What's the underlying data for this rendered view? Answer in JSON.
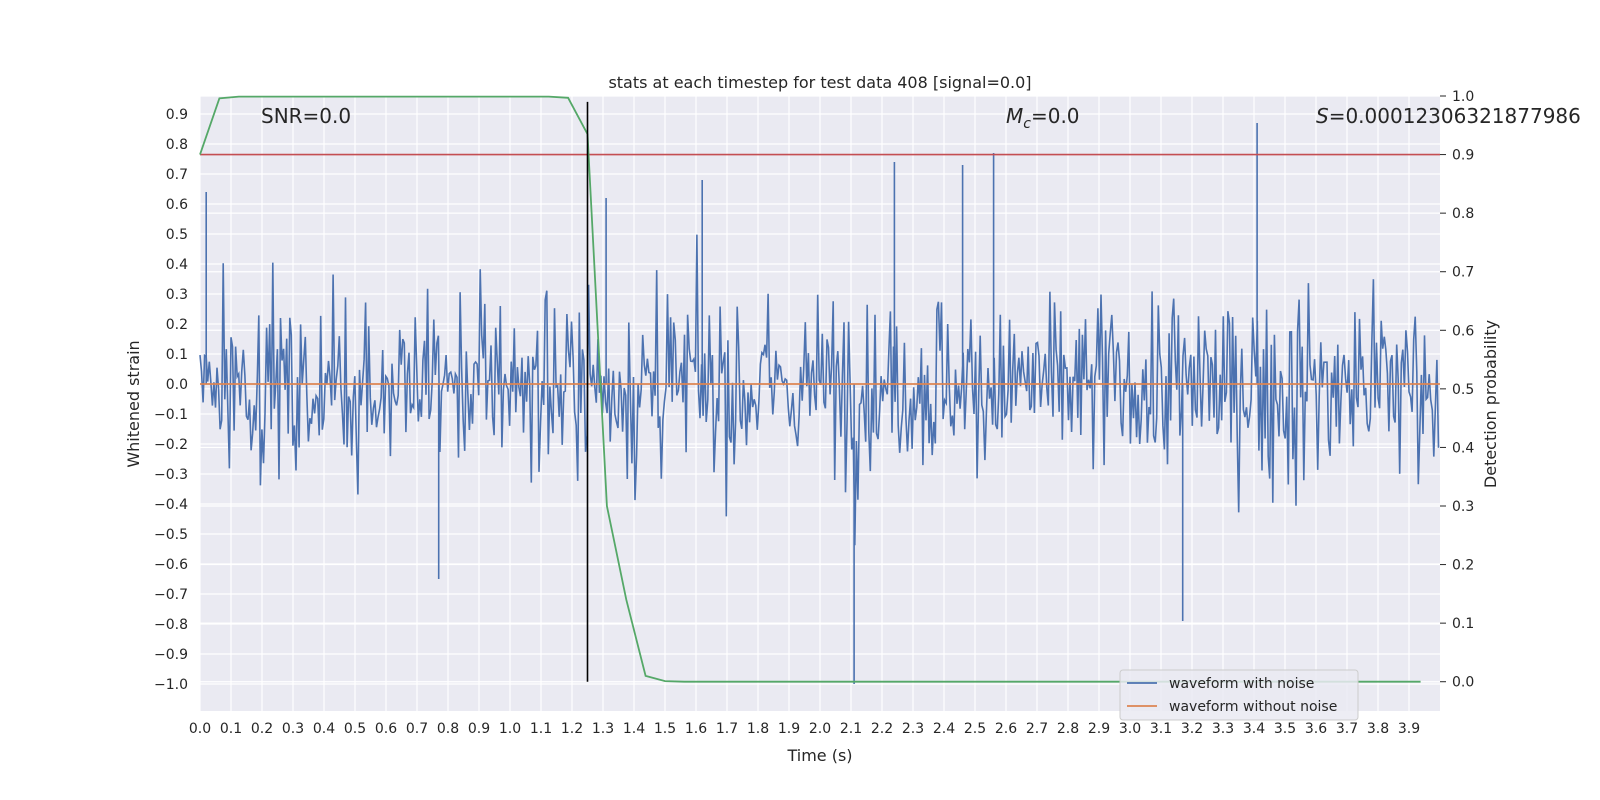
{
  "chart_data": {
    "type": "line",
    "title": "stats at each timestep for test data 408 [signal=0.0]",
    "xlabel": "Time (s)",
    "ylabel_left": "Whitened strain",
    "ylabel_right": "Detection probability",
    "xlim": [
      0.0,
      4.0
    ],
    "ylim_left": [
      -1.09,
      0.96
    ],
    "ylim_right": [
      -0.05,
      1.0
    ],
    "x_ticks": [
      "0.0",
      "0.1",
      "0.2",
      "0.3",
      "0.4",
      "0.5",
      "0.6",
      "0.7",
      "0.8",
      "0.9",
      "1.0",
      "1.1",
      "1.2",
      "1.3",
      "1.4",
      "1.5",
      "1.6",
      "1.7",
      "1.8",
      "1.9",
      "2.0",
      "2.1",
      "2.2",
      "2.3",
      "2.4",
      "2.5",
      "2.6",
      "2.7",
      "2.8",
      "2.9",
      "3.0",
      "3.1",
      "3.2",
      "3.3",
      "3.4",
      "3.5",
      "3.6",
      "3.7",
      "3.8",
      "3.9"
    ],
    "y_ticks_left": [
      "0.9",
      "0.8",
      "0.7",
      "0.6",
      "0.5",
      "0.4",
      "0.3",
      "0.2",
      "0.1",
      "0.0",
      "−0.1",
      "−0.2",
      "−0.3",
      "−0.4",
      "−0.5",
      "−0.6",
      "−0.7",
      "−0.8",
      "−0.9",
      "−1.0"
    ],
    "y_ticks_right": [
      "1.0",
      "0.9",
      "0.8",
      "0.7",
      "0.6",
      "0.5",
      "0.4",
      "0.3",
      "0.2",
      "0.1",
      "0.0"
    ],
    "annotations": {
      "snr": "SNR=0.0",
      "mc_symbol": "M",
      "mc_sub": "c",
      "mc_value": "=0.0",
      "s_symbol": "S",
      "s_value": "=0.00012306321877986"
    },
    "grid": true,
    "legend_position": "lower-right",
    "series": [
      {
        "name": "waveform with noise",
        "axis": "left",
        "color": "#4c72b0",
        "note_values": "dense noisy trace sampled at 0.005 s (approx. amplitude +/-0.35 with spikes)",
        "spikes": [
          {
            "x": 2.11,
            "y": -1.0
          },
          {
            "x": 3.41,
            "y": 0.87
          },
          {
            "x": 2.56,
            "y": 0.77
          },
          {
            "x": 2.24,
            "y": 0.74
          },
          {
            "x": 2.46,
            "y": 0.73
          },
          {
            "x": 3.17,
            "y": -0.79
          },
          {
            "x": 0.02,
            "y": 0.64
          },
          {
            "x": 1.31,
            "y": 0.62
          },
          {
            "x": 0.77,
            "y": -0.65
          },
          {
            "x": 1.62,
            "y": 0.68
          }
        ]
      },
      {
        "name": "waveform without noise",
        "axis": "left",
        "color": "#dd8452",
        "x": [
          0.0,
          4.0
        ],
        "y": [
          0.0,
          0.0
        ]
      },
      {
        "name": "",
        "axis": "right",
        "color": "#55a868",
        "x": [
          0.0,
          0.0625,
          0.125,
          0.1875,
          0.25,
          0.3125,
          0.375,
          0.4375,
          0.5,
          0.5625,
          0.625,
          0.6875,
          0.75,
          0.8125,
          0.875,
          0.9375,
          1.0,
          1.0625,
          1.125,
          1.1875,
          1.25,
          1.3125,
          1.375,
          1.4375,
          1.5,
          1.5625,
          1.625,
          1.6875,
          1.75,
          1.8125,
          1.875,
          1.9375,
          2.0,
          2.0625,
          2.125,
          2.1875,
          2.25,
          2.3125,
          2.375,
          2.4375,
          2.5,
          2.5625,
          2.625,
          2.6875,
          2.75,
          2.8125,
          2.875,
          2.9375,
          3.0,
          3.0625,
          3.125,
          3.1875,
          3.25,
          3.3125,
          3.375,
          3.4375,
          3.5,
          3.5625,
          3.625,
          3.6875,
          3.75,
          3.8125,
          3.875,
          3.9375
        ],
        "y": [
          0.9,
          0.996,
          0.999,
          0.999,
          0.999,
          0.999,
          0.999,
          0.999,
          0.999,
          0.999,
          0.999,
          0.999,
          0.999,
          0.999,
          0.999,
          0.999,
          0.999,
          0.999,
          0.999,
          0.997,
          0.935,
          0.3,
          0.14,
          0.01,
          0.001,
          0.0,
          0.0,
          0.0,
          0.0,
          0.0,
          0.0,
          0.0,
          0.0,
          0.0,
          0.0,
          0.0,
          0.0,
          0.0,
          0.0,
          0.0,
          0.0,
          0.0,
          0.0,
          0.0,
          0.0,
          0.0,
          0.0,
          0.0,
          0.0,
          0.0,
          0.0,
          0.0,
          0.0,
          0.0,
          0.0,
          0.0,
          0.0,
          0.0,
          0.0,
          0.0,
          0.0,
          0.0,
          0.0,
          0.0
        ]
      }
    ],
    "reference_lines": [
      {
        "orientation": "horizontal",
        "axis": "right",
        "value": 0.9,
        "color": "#c44e52"
      },
      {
        "orientation": "vertical",
        "value": 1.25,
        "color": "#000000",
        "range_right": [
          0.0,
          0.99
        ]
      }
    ],
    "legend": [
      "waveform with noise",
      "waveform without noise"
    ]
  }
}
